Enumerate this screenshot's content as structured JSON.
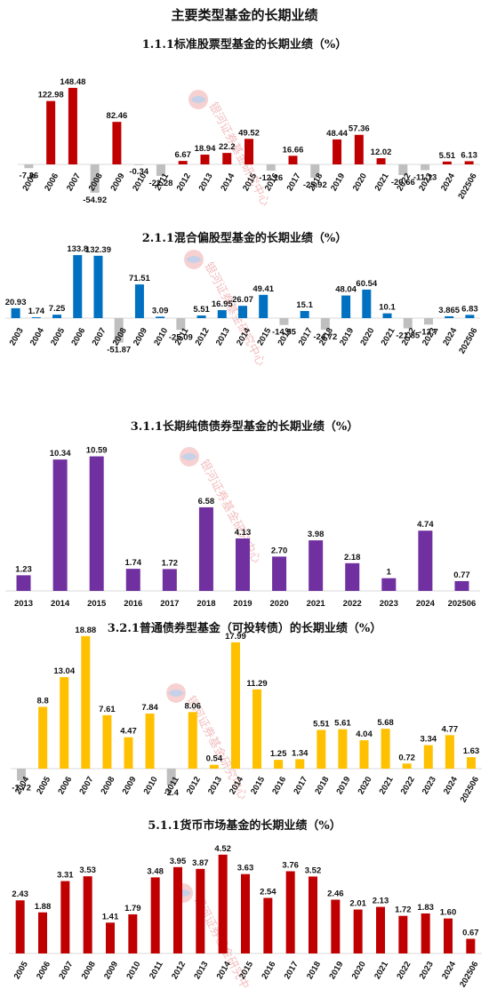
{
  "page_title": "主要类型基金的长期业绩",
  "watermark": "银河证券基金研究中心",
  "colors": {
    "negative": "#bfbfbf"
  },
  "chart_data": [
    {
      "type": "bar",
      "title": "1.1.1标准股票型基金的长期业绩（%）",
      "color": "#c00000",
      "categories": [
        "2005",
        "2006",
        "2007",
        "2008",
        "2009",
        "2010",
        "2011",
        "2012",
        "2013",
        "2014",
        "2015",
        "2016",
        "2017",
        "2018",
        "2019",
        "2020",
        "2021",
        "2022",
        "2023",
        "2024",
        "202506"
      ],
      "values": [
        -7.36,
        122.98,
        148.48,
        -54.92,
        82.46,
        -0.34,
        -22.28,
        6.67,
        18.94,
        22.2,
        49.52,
        -12.16,
        16.66,
        -25.92,
        48.44,
        57.36,
        12.02,
        -20.66,
        -11.13,
        5.51,
        6.13
      ],
      "labels": [
        "-7.36",
        "122.98",
        "148.48",
        "-54.92",
        "82.46",
        "-0.34",
        "-22.28",
        "6.67",
        "18.94",
        "22.2",
        "49.52",
        "-12.16",
        "16.66",
        "-25.92",
        "48.44",
        "57.36",
        "12.02",
        "-20.66",
        "-11.13",
        "5.51",
        "6.13"
      ],
      "xlabel": "",
      "ylabel": ""
    },
    {
      "type": "bar",
      "title": "2.1.1混合偏股型基金的长期业绩（%）",
      "color": "#0070c0",
      "categories": [
        "2003",
        "2004",
        "2005",
        "2006",
        "2007",
        "2008",
        "2009",
        "2010",
        "2011",
        "2012",
        "2013",
        "2014",
        "2015",
        "2016",
        "2017",
        "2018",
        "2019",
        "2020",
        "2021",
        "2022",
        "2023",
        "2024",
        "202506"
      ],
      "values": [
        20.93,
        1.74,
        7.25,
        133.8,
        132.39,
        -51.87,
        71.51,
        3.09,
        -25.09,
        5.51,
        16.95,
        26.07,
        49.41,
        -14.55,
        15.1,
        -24.72,
        48.04,
        60.54,
        10.1,
        -21.85,
        -13.7,
        3.865,
        6.83
      ],
      "labels": [
        "20.93",
        "1.74",
        "7.25",
        "133.8",
        "132.39",
        "-51.87",
        "71.51",
        "3.09",
        "-25.09",
        "5.51",
        "16.95",
        "26.07",
        "49.41",
        "-14.55",
        "15.1",
        "-24.72",
        "48.04",
        "60.54",
        "10.1",
        "-21.85",
        "-13.7",
        "3.865",
        "6.83"
      ],
      "xlabel": "",
      "ylabel": ""
    },
    {
      "type": "bar",
      "title": "3.1.1长期纯债债券型基金的长期业绩（%）",
      "color": "#7030a0",
      "categories": [
        "2013",
        "2014",
        "2015",
        "2016",
        "2017",
        "2018",
        "2019",
        "2020",
        "2021",
        "2022",
        "2023",
        "2024",
        "202506"
      ],
      "values": [
        1.23,
        10.34,
        10.59,
        1.74,
        1.72,
        6.58,
        4.13,
        2.7,
        3.98,
        2.18,
        1,
        4.74,
        0.77
      ],
      "labels": [
        "1.23",
        "10.34",
        "10.59",
        "1.74",
        "1.72",
        "6.58",
        "4.13",
        "2.70",
        "3.98",
        "2.18",
        "1",
        "4.74",
        "0.77"
      ],
      "xlabel": "",
      "ylabel": ""
    },
    {
      "type": "bar",
      "title": "3.2.1普通债券型基金（可投转债）的长期业绩（%）",
      "color": "#ffc000",
      "categories": [
        "2004",
        "2005",
        "2006",
        "2007",
        "2008",
        "2009",
        "2010",
        "2011",
        "2012",
        "2013",
        "2014",
        "2015",
        "2016",
        "2017",
        "2018",
        "2019",
        "2020",
        "2021",
        "2022",
        "2023",
        "2024",
        "202506"
      ],
      "values": [
        -1.72,
        8.8,
        13.04,
        18.88,
        7.61,
        4.47,
        7.84,
        -2.4,
        8.06,
        0.54,
        17.99,
        11.29,
        1.25,
        1.34,
        5.51,
        5.61,
        4.04,
        5.68,
        0.72,
        3.34,
        4.77,
        1.63
      ],
      "labels": [
        "-1.72",
        "8.8",
        "13.04",
        "18.88",
        "7.61",
        "4.47",
        "7.84",
        "-2.4",
        "8.06",
        "0.54",
        "17.99",
        "11.29",
        "1.25",
        "1.34",
        "5.51",
        "5.61",
        "4.04",
        "5.68",
        "0.72",
        "3.34",
        "4.77",
        "1.63"
      ],
      "xlabel": "",
      "ylabel": ""
    },
    {
      "type": "bar",
      "title": "5.1.1货币市场基金的长期业绩（%）",
      "color": "#c00000",
      "categories": [
        "2005",
        "2006",
        "2007",
        "2008",
        "2009",
        "2010",
        "2011",
        "2012",
        "2013",
        "2014",
        "2015",
        "2016",
        "2017",
        "2018",
        "2019",
        "2020",
        "2021",
        "2022",
        "2023",
        "2024",
        "202506"
      ],
      "values": [
        2.43,
        1.88,
        3.31,
        3.53,
        1.41,
        1.79,
        3.48,
        3.95,
        3.87,
        4.52,
        3.63,
        2.54,
        3.76,
        3.52,
        2.46,
        2.01,
        2.13,
        1.72,
        1.83,
        1.6,
        0.67
      ],
      "labels": [
        "2.43",
        "1.88",
        "3.31",
        "3.53",
        "1.41",
        "1.79",
        "3.48",
        "3.95",
        "3.87",
        "4.52",
        "3.63",
        "2.54",
        "3.76",
        "3.52",
        "2.46",
        "2.01",
        "2.13",
        "1.72",
        "1.83",
        "1.60",
        "0.67"
      ],
      "xlabel": "",
      "ylabel": ""
    }
  ]
}
